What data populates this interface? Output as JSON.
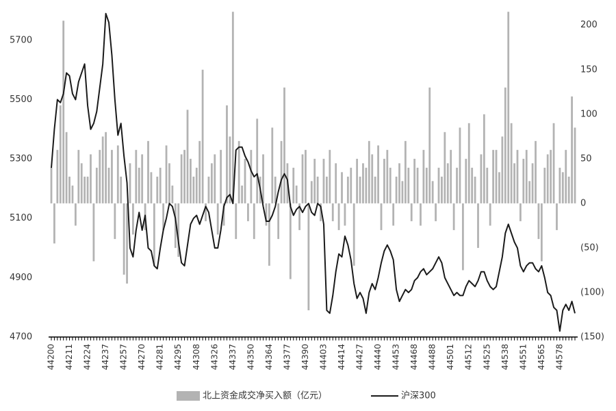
{
  "chart_data": {
    "type": "bar-line",
    "categories": [
      "44200",
      null,
      null,
      null,
      null,
      null,
      "44211",
      null,
      null,
      null,
      null,
      null,
      "44224",
      null,
      null,
      null,
      null,
      null,
      "44237",
      null,
      null,
      null,
      null,
      null,
      "44257",
      null,
      null,
      null,
      null,
      null,
      "44270",
      null,
      null,
      null,
      null,
      null,
      "44281",
      null,
      null,
      null,
      null,
      null,
      "44295",
      null,
      null,
      null,
      null,
      null,
      "44308",
      null,
      null,
      null,
      null,
      null,
      "44326",
      null,
      null,
      null,
      null,
      null,
      "44337",
      null,
      null,
      null,
      null,
      null,
      "44350",
      null,
      null,
      null,
      null,
      null,
      "44364",
      null,
      null,
      null,
      null,
      null,
      "44377",
      null,
      null,
      null,
      null,
      null,
      "44390",
      null,
      null,
      null,
      null,
      null,
      "44403",
      null,
      null,
      null,
      null,
      null,
      "44414",
      null,
      null,
      null,
      null,
      null,
      "44427",
      null,
      null,
      null,
      null,
      null,
      "44440",
      null,
      null,
      null,
      null,
      null,
      "44453",
      null,
      null,
      null,
      null,
      null,
      "44468",
      null,
      null,
      null,
      null,
      null,
      "44488",
      null,
      null,
      null,
      null,
      null,
      "44501",
      null,
      null,
      null,
      null,
      null,
      "44512",
      null,
      null,
      null,
      null,
      null,
      "44525",
      null,
      null,
      null,
      null,
      null,
      "44538",
      null,
      null,
      null,
      null,
      null,
      "44551",
      null,
      null,
      null,
      null,
      null,
      "44565",
      null,
      null,
      null,
      null,
      null,
      "44578",
      null,
      null,
      null,
      null,
      null
    ],
    "series": [
      {
        "name": "北上资金成交净买入额（亿元）",
        "type": "bar",
        "axis": "y2",
        "color": "#b3b3b3",
        "values": [
          40,
          -45,
          60,
          110,
          205,
          80,
          30,
          20,
          -25,
          60,
          45,
          30,
          30,
          55,
          -65,
          40,
          60,
          75,
          80,
          40,
          60,
          -40,
          65,
          30,
          -80,
          -90,
          45,
          -35,
          60,
          40,
          55,
          -30,
          70,
          35,
          -70,
          30,
          40,
          -30,
          65,
          45,
          20,
          -50,
          -60,
          55,
          60,
          105,
          50,
          30,
          40,
          70,
          150,
          -20,
          30,
          45,
          55,
          -35,
          60,
          -25,
          110,
          75,
          215,
          -40,
          70,
          20,
          50,
          -20,
          60,
          -40,
          95,
          30,
          55,
          -25,
          -70,
          85,
          30,
          -40,
          70,
          130,
          45,
          -85,
          40,
          20,
          -30,
          55,
          60,
          -120,
          25,
          50,
          30,
          -20,
          50,
          30,
          60,
          -20,
          45,
          -30,
          35,
          -25,
          30,
          40,
          -70,
          50,
          30,
          45,
          40,
          70,
          55,
          30,
          65,
          -30,
          50,
          60,
          40,
          -25,
          30,
          45,
          25,
          70,
          40,
          -20,
          50,
          40,
          -25,
          60,
          40,
          130,
          25,
          -20,
          40,
          30,
          80,
          45,
          60,
          -30,
          40,
          85,
          -75,
          50,
          90,
          40,
          30,
          -50,
          55,
          100,
          40,
          -25,
          60,
          60,
          35,
          75,
          130,
          215,
          90,
          45,
          60,
          -20,
          50,
          60,
          25,
          45,
          70,
          -40,
          -65,
          40,
          55,
          60,
          90,
          -30,
          40,
          35,
          60,
          30,
          120,
          85
        ]
      },
      {
        "name": "沪深300",
        "type": "line",
        "axis": "y",
        "color": "#1a1a1a",
        "values": [
          5270,
          5400,
          5500,
          5490,
          5520,
          5590,
          5580,
          5520,
          5500,
          5560,
          5590,
          5620,
          5480,
          5400,
          5420,
          5460,
          5540,
          5620,
          5790,
          5760,
          5650,
          5500,
          5380,
          5420,
          5310,
          5220,
          5000,
          4970,
          5060,
          5120,
          5060,
          5110,
          5000,
          4990,
          4940,
          4930,
          5000,
          5060,
          5100,
          5150,
          5140,
          5100,
          5020,
          4950,
          4940,
          5010,
          5080,
          5100,
          5110,
          5080,
          5110,
          5140,
          5120,
          5060,
          5000,
          5000,
          5060,
          5140,
          5170,
          5180,
          5150,
          5330,
          5340,
          5340,
          5310,
          5290,
          5260,
          5240,
          5250,
          5200,
          5140,
          5090,
          5090,
          5110,
          5140,
          5190,
          5230,
          5250,
          5230,
          5140,
          5110,
          5130,
          5140,
          5120,
          5140,
          5150,
          5120,
          5110,
          5150,
          5140,
          5080,
          4790,
          4780,
          4840,
          4920,
          4980,
          4970,
          5040,
          5010,
          4960,
          4880,
          4830,
          4850,
          4830,
          4780,
          4850,
          4880,
          4860,
          4900,
          4950,
          4990,
          5010,
          4990,
          4960,
          4860,
          4820,
          4840,
          4860,
          4850,
          4860,
          4890,
          4900,
          4920,
          4930,
          4910,
          4920,
          4930,
          4950,
          4970,
          4950,
          4900,
          4880,
          4860,
          4840,
          4850,
          4840,
          4840,
          4870,
          4890,
          4880,
          4870,
          4890,
          4920,
          4920,
          4890,
          4870,
          4860,
          4870,
          4920,
          4970,
          5050,
          5080,
          5050,
          5020,
          5000,
          4940,
          4920,
          4940,
          4950,
          4950,
          4930,
          4920,
          4940,
          4900,
          4850,
          4840,
          4800,
          4790,
          4720,
          4790,
          4810,
          4790,
          4820,
          4780
        ]
      }
    ],
    "ylim": [
      4700,
      5808
    ],
    "yticks": [
      4700,
      4900,
      5100,
      5300,
      5500,
      5700
    ],
    "y2lim": [
      -150,
      219
    ],
    "y2ticks": [
      {
        "value": -150,
        "label": "(150)"
      },
      {
        "value": -100,
        "label": "(100)"
      },
      {
        "value": -50,
        "label": "(50)"
      },
      0,
      50,
      100,
      150,
      200
    ],
    "legend": "bottom"
  }
}
